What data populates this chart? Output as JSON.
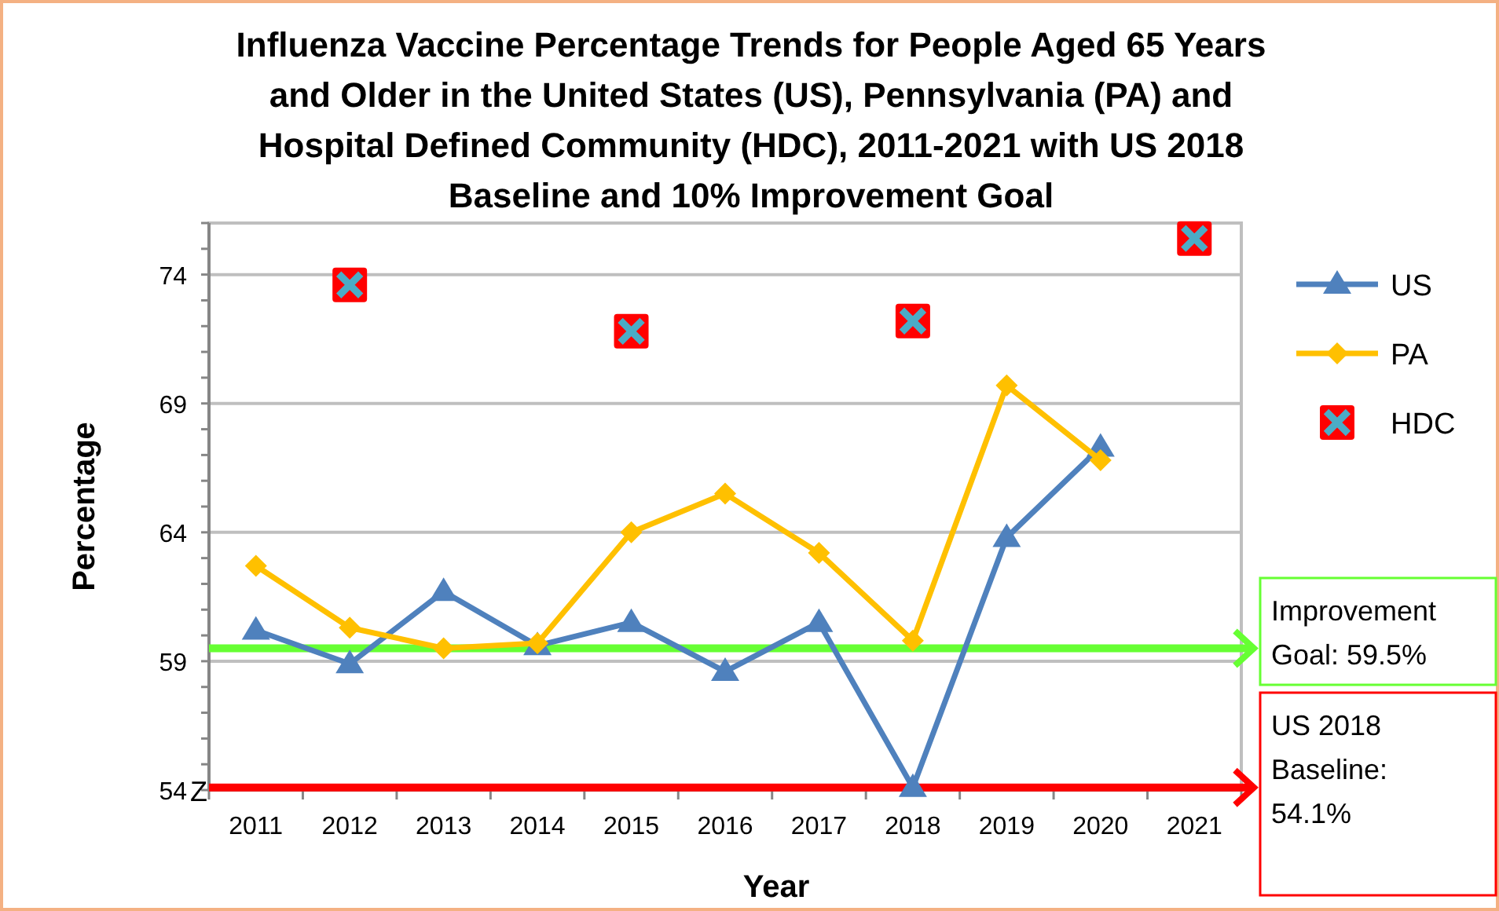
{
  "chart_data": {
    "type": "line",
    "title": "Influenza Vaccine Percentage Trends for People Aged 65 Years and Older in the United States (US), Pennsylvania (PA) and Hospital Defined Community (HDC), 2011-2021 with US 2018 Baseline and 10% Improvement Goal",
    "xlabel": "Year",
    "ylabel": "Percentage",
    "categories": [
      "2011",
      "2012",
      "2013",
      "2014",
      "2015",
      "2016",
      "2017",
      "2018",
      "2019",
      "2020",
      "2021"
    ],
    "series": [
      {
        "name": "US",
        "color": "#4f81bd",
        "marker": "triangle",
        "values": [
          60.2,
          58.9,
          61.7,
          59.6,
          60.5,
          58.6,
          60.5,
          54.1,
          63.8,
          67.3,
          null
        ]
      },
      {
        "name": "PA",
        "color": "#ffc000",
        "marker": "diamond",
        "values": [
          62.7,
          60.3,
          59.5,
          59.7,
          64.0,
          65.5,
          63.2,
          59.8,
          69.7,
          66.8,
          null
        ]
      },
      {
        "name": "HDC",
        "type": "scatter",
        "color": "#4bacc6",
        "marker": "cross",
        "values": [
          null,
          73.6,
          null,
          null,
          71.8,
          null,
          null,
          72.2,
          null,
          null,
          75.4
        ]
      }
    ],
    "ylim": [
      54,
      76
    ],
    "yticks": [
      54,
      59,
      64,
      69,
      74
    ],
    "grid": "y",
    "legend": "right",
    "ref_lines": [
      {
        "axis": "y",
        "value": 59.5,
        "label": "Improvement Goal: 59.5%",
        "color": "#66ff33"
      },
      {
        "axis": "y",
        "value": 54.1,
        "label": "US 2018 Baseline: 54.1%",
        "color": "#ff0000"
      }
    ],
    "annotations": [
      "Z"
    ]
  }
}
